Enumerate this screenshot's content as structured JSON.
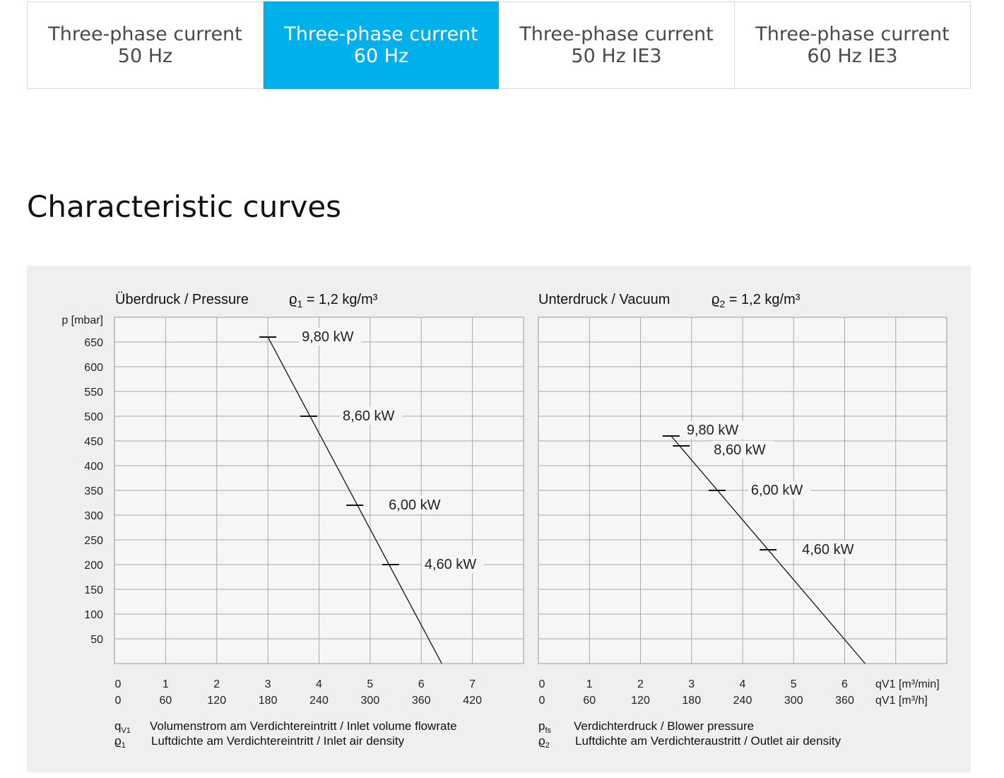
{
  "tabs": [
    {
      "line1": "Three-phase current",
      "line2": "50 Hz",
      "active": false
    },
    {
      "line1": "Three-phase current",
      "line2": "60 Hz",
      "active": true
    },
    {
      "line1": "Three-phase current",
      "line2": "50 Hz IE3",
      "active": false
    },
    {
      "line1": "Three-phase current",
      "line2": "60 Hz IE3",
      "active": false
    }
  ],
  "section_title": "Characteristic curves",
  "chart_data": [
    {
      "type": "line",
      "title": "Überdruck / Pressure",
      "density_label": "ϱ1 = 1,2 kg/m³",
      "ylabel": "p [mbar]",
      "yticks": [
        650,
        600,
        550,
        500,
        450,
        400,
        350,
        300,
        250,
        200,
        150,
        100,
        50
      ],
      "ylim": [
        0,
        700
      ],
      "xlim": [
        0,
        8
      ],
      "xticks_min": [
        "0",
        "1",
        "2",
        "3",
        "4",
        "5",
        "6",
        "7"
      ],
      "xticks_h": [
        "0",
        "60",
        "120",
        "180",
        "240",
        "300",
        "360",
        "420"
      ],
      "line": {
        "x": [
          3.0,
          6.4
        ],
        "y": [
          660,
          0
        ]
      },
      "points": [
        {
          "label": "9,80 kW",
          "x": 3.0,
          "y": 660
        },
        {
          "label": "8,60 kW",
          "x": 3.8,
          "y": 500
        },
        {
          "label": "6,00 kW",
          "x": 4.7,
          "y": 320
        },
        {
          "label": "4,60 kW",
          "x": 5.4,
          "y": 200
        }
      ],
      "legend": [
        {
          "sym": "q",
          "sub": "V1",
          "text": "Volumenstrom am Verdichtereintritt / Inlet volume flowrate"
        },
        {
          "sym": "ϱ",
          "sub": "1",
          "text": "Luftdichte am Verdichtereintritt / Inlet air density"
        }
      ]
    },
    {
      "type": "line",
      "title": "Unterdruck / Vacuum",
      "density_label": "ϱ2 = 1,2 kg/m³",
      "ylim": [
        0,
        700
      ],
      "xlim": [
        0,
        8
      ],
      "xticks_min": [
        "0",
        "1",
        "2",
        "3",
        "4",
        "5",
        "6"
      ],
      "xticks_h": [
        "0",
        "60",
        "120",
        "180",
        "240",
        "300",
        "360"
      ],
      "xunit_min": "qV1 [m³/min]",
      "xunit_h": "qV1 [m³/h]",
      "line": {
        "x": [
          2.6,
          6.4
        ],
        "y": [
          460,
          0
        ]
      },
      "points": [
        {
          "label": "9,80 kW",
          "x": 2.6,
          "y": 460
        },
        {
          "label": "8,60 kW",
          "x": 2.8,
          "y": 440
        },
        {
          "label": "6,00 kW",
          "x": 3.5,
          "y": 350
        },
        {
          "label": "4,60 kW",
          "x": 4.5,
          "y": 230
        }
      ],
      "legend": [
        {
          "sym": "p",
          "sub": "fs",
          "text": "Verdichterdruck / Blower pressure"
        },
        {
          "sym": "ϱ",
          "sub": "2",
          "text": "Luftdichte am Verdichteraustritt / Outlet air density"
        }
      ]
    }
  ]
}
